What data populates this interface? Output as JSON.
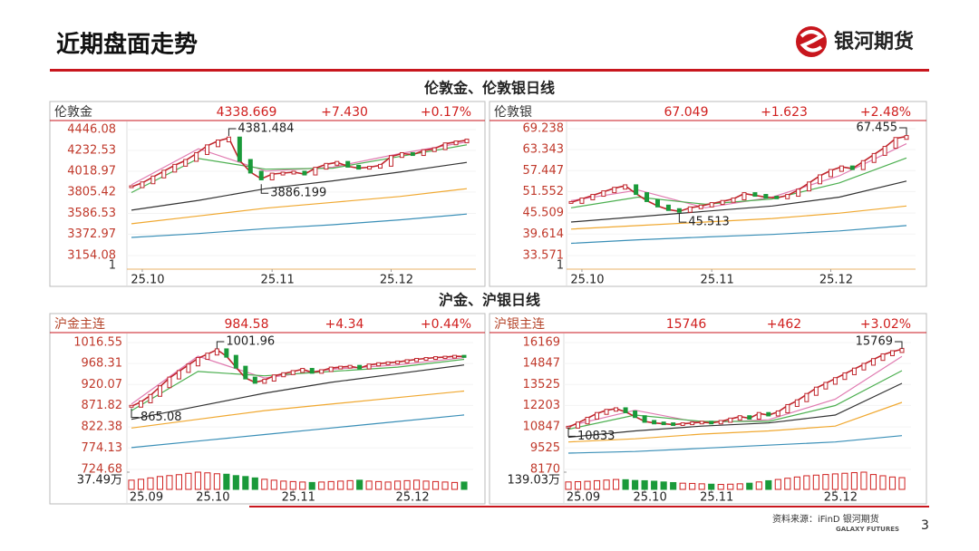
{
  "header": {
    "title": "近期盘面走势",
    "logo": "银河期货"
  },
  "sections": [
    {
      "title": "伦敦金、伦敦银日线"
    },
    {
      "title": "沪金、沪银日线"
    }
  ],
  "footer": {
    "source": "资料来源：iFinD 银河期货",
    "brand": "GALAXY FUTURES",
    "page": "3"
  },
  "chart_data": [
    {
      "type": "line",
      "name": "伦敦金",
      "price": "4338.669",
      "change": "+7.430",
      "pct": "+0.17%",
      "ylim": [
        3154.08,
        4446.08
      ],
      "yticks": [
        4446.08,
        4232.53,
        4018.97,
        3805.42,
        3586.53,
        3372.97,
        3154.08
      ],
      "sub_axis_label": "1",
      "xlim": [
        0,
        31
      ],
      "xticks": [
        {
          "value": 1,
          "label": "25.10"
        },
        {
          "value": 13,
          "label": "25.11"
        },
        {
          "value": 24,
          "label": "25.12"
        }
      ],
      "series": [
        {
          "name": "close",
          "color": "#c0262d",
          "values": [
            3860,
            3900,
            3960,
            4020,
            4080,
            4130,
            4200,
            4280,
            4330,
            4360,
            4130,
            4010,
            3940,
            3990,
            4000,
            4010,
            3990,
            4050,
            4090,
            4110,
            4070,
            4050,
            4060,
            4080,
            4170,
            4200,
            4190,
            4230,
            4250,
            4300,
            4320,
            4338.669
          ]
        }
      ],
      "ma": [
        {
          "color": "#e07ab0",
          "values": [
            3880,
            4250,
            4020,
            4060,
            4200,
            4320
          ]
        },
        {
          "color": "#4caf50",
          "values": [
            3800,
            4150,
            4040,
            4050,
            4170,
            4290
          ]
        },
        {
          "color": "#333333",
          "values": [
            3620,
            3720,
            3840,
            3920,
            4010,
            4110
          ]
        },
        {
          "color": "#f0a830",
          "values": [
            3480,
            3560,
            3640,
            3700,
            3760,
            3840
          ]
        },
        {
          "color": "#3a8fb7",
          "values": [
            3340,
            3380,
            3430,
            3470,
            3520,
            3580
          ]
        }
      ],
      "annotations": [
        {
          "index": 9,
          "value": 4381.484,
          "pos": "above"
        },
        {
          "index": 12,
          "value": 3886.199,
          "pos": "below"
        }
      ]
    },
    {
      "type": "line",
      "name": "伦敦银",
      "price": "67.049",
      "change": "+1.623",
      "pct": "+2.48%",
      "ylim": [
        33.571,
        69.238
      ],
      "yticks": [
        69.238,
        63.343,
        57.447,
        51.552,
        45.509,
        39.614,
        33.571
      ],
      "sub_axis_label": "1",
      "xlim": [
        0,
        31
      ],
      "xticks": [
        {
          "value": 1,
          "label": "25.10"
        },
        {
          "value": 13,
          "label": "25.11"
        },
        {
          "value": 24,
          "label": "25.12"
        }
      ],
      "series": [
        {
          "name": "close",
          "color": "#c0262d",
          "values": [
            48.5,
            49.5,
            50.5,
            51.5,
            52.5,
            53.2,
            51,
            49,
            47.5,
            46.5,
            46,
            47,
            47.5,
            48.2,
            48.8,
            49.5,
            51,
            50.5,
            50,
            49.8,
            50.5,
            52,
            54,
            56,
            57.5,
            58.5,
            58,
            60,
            62,
            64,
            66.5,
            67.049
          ]
        }
      ],
      "ma": [
        {
          "color": "#e07ab0",
          "values": [
            49,
            52,
            47,
            50,
            56,
            65
          ]
        },
        {
          "color": "#4caf50",
          "values": [
            47,
            50,
            48,
            49.5,
            54,
            61
          ]
        },
        {
          "color": "#333333",
          "values": [
            43,
            44.5,
            46,
            47.5,
            50,
            54.5
          ]
        },
        {
          "color": "#f0a830",
          "values": [
            41,
            42,
            43,
            44,
            45.5,
            47.5
          ]
        },
        {
          "color": "#3a8fb7",
          "values": [
            37,
            38,
            38.8,
            39.5,
            40.5,
            42
          ]
        }
      ],
      "annotations": [
        {
          "index": 31,
          "value": 67.455,
          "pos": "above-left"
        },
        {
          "index": 10,
          "value": 45.513,
          "pos": "below"
        }
      ]
    },
    {
      "type": "line",
      "name": "沪金主连",
      "price": "984.58",
      "change": "+4.34",
      "pct": "+0.44%",
      "ylim": [
        724.68,
        1016.55
      ],
      "yticks": [
        1016.55,
        968.31,
        920.07,
        871.82,
        822.38,
        774.13,
        724.68
      ],
      "volume_axis": {
        "value": 37.49,
        "label": "37.49万"
      },
      "xlim": [
        0,
        35
      ],
      "xticks": [
        {
          "value": 1,
          "label": "25.09"
        },
        {
          "value": 8,
          "label": "25.10"
        },
        {
          "value": 17,
          "label": "25.11"
        },
        {
          "value": 29,
          "label": "25.12"
        }
      ],
      "series": [
        {
          "name": "close",
          "color": "#c0262d",
          "values": [
            870,
            880,
            895,
            915,
            935,
            950,
            965,
            980,
            990,
            1000,
            985,
            960,
            935,
            925,
            930,
            940,
            945,
            950,
            955,
            948,
            952,
            958,
            960,
            962,
            958,
            965,
            968,
            970,
            972,
            975,
            978,
            980,
            982,
            983,
            985,
            984.58
          ]
        }
      ],
      "volume": [
        20,
        22,
        25,
        28,
        30,
        32,
        35,
        37.49,
        36,
        34,
        33,
        30,
        28,
        25,
        22,
        20,
        18,
        17,
        16,
        15,
        16,
        17,
        18,
        19,
        20,
        18,
        17,
        16,
        18,
        19,
        20,
        18,
        17,
        16,
        15,
        16
      ],
      "ma": [
        {
          "color": "#e07ab0",
          "values": [
            875,
            985,
            935,
            955,
            965,
            982
          ]
        },
        {
          "color": "#4caf50",
          "values": [
            860,
            950,
            940,
            950,
            960,
            978
          ]
        },
        {
          "color": "#333333",
          "values": [
            840,
            870,
            900,
            925,
            945,
            965
          ]
        },
        {
          "color": "#f0a830",
          "values": [
            820,
            840,
            860,
            875,
            890,
            905
          ]
        },
        {
          "color": "#3a8fb7",
          "values": [
            775,
            790,
            805,
            820,
            835,
            850
          ]
        }
      ],
      "annotations": [
        {
          "index": 9,
          "value": 1001.96,
          "pos": "above"
        },
        {
          "index": 0,
          "value": 865.08,
          "pos": "below"
        }
      ]
    },
    {
      "type": "line",
      "name": "沪银主连",
      "price": "15746",
      "change": "+462",
      "pct": "+3.02%",
      "ylim": [
        8170,
        16169
      ],
      "yticks": [
        16169,
        14847,
        13525,
        12203,
        10847,
        9525,
        8170
      ],
      "volume_axis": {
        "value": 139.03,
        "label": "139.03万"
      },
      "xlim": [
        0,
        35
      ],
      "xticks": [
        {
          "value": 1,
          "label": "25.09"
        },
        {
          "value": 8,
          "label": "25.10"
        },
        {
          "value": 15,
          "label": "25.11"
        },
        {
          "value": 28,
          "label": "25.12"
        }
      ],
      "series": [
        {
          "name": "close",
          "color": "#c0262d",
          "values": [
            10833,
            11100,
            11400,
            11700,
            11900,
            12000,
            11800,
            11500,
            11200,
            11100,
            11050,
            11000,
            11050,
            11100,
            11150,
            11100,
            11200,
            11350,
            11500,
            11400,
            11700,
            11600,
            11800,
            12200,
            12500,
            12900,
            13300,
            13600,
            13900,
            14200,
            14500,
            14800,
            15100,
            15400,
            15600,
            15746
          ]
        }
      ],
      "volume": [
        60,
        62,
        65,
        70,
        75,
        80,
        78,
        72,
        70,
        66,
        60,
        55,
        50,
        48,
        45,
        42,
        40,
        42,
        45,
        50,
        60,
        70,
        80,
        90,
        100,
        110,
        115,
        120,
        125,
        130,
        135,
        139.03,
        120,
        110,
        100,
        95
      ],
      "ma": [
        {
          "color": "#e07ab0",
          "values": [
            10900,
            11900,
            11100,
            11300,
            12600,
            15300
          ]
        },
        {
          "color": "#4caf50",
          "values": [
            10700,
            11600,
            11200,
            11200,
            12200,
            14400
          ]
        },
        {
          "color": "#333333",
          "values": [
            10200,
            10600,
            10900,
            11100,
            11600,
            13600
          ]
        },
        {
          "color": "#f0a830",
          "values": [
            9900,
            10100,
            10400,
            10600,
            10900,
            12400
          ]
        },
        {
          "color": "#3a8fb7",
          "values": [
            9200,
            9300,
            9500,
            9700,
            9900,
            10300
          ]
        }
      ],
      "annotations": [
        {
          "index": 35,
          "value": 15769,
          "pos": "above-left"
        },
        {
          "index": 0,
          "value": 10833,
          "pos": "below-right"
        }
      ]
    }
  ]
}
